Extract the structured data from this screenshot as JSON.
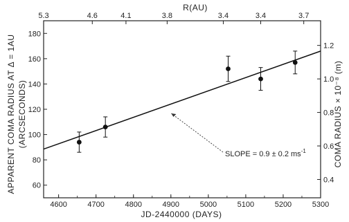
{
  "chart_data": {
    "type": "scatter",
    "x_axis": {
      "label": "JD-2440000 (DAYS)",
      "range": [
        4560,
        5300
      ],
      "ticks": [
        "4600",
        "4700",
        "4800",
        "4900",
        "5000",
        "5100",
        "5200",
        "5300"
      ]
    },
    "y_axis_left": {
      "label_line1": "APPARENT COMA RADIUS AT Δ = 1AU",
      "label_line2": "(ARCSECONDS)",
      "range": [
        50,
        190
      ],
      "ticks": [
        "60",
        "80",
        "100",
        "120",
        "140",
        "160",
        "180"
      ]
    },
    "y_axis_right": {
      "label": "COMA RADIUS × 10⁻⁸ (m)",
      "ticks": [
        "0.4",
        "0.6",
        "0.8",
        "1.0",
        "1.2"
      ],
      "tick_left_values": [
        64.5,
        91,
        117.5,
        144,
        170.5
      ]
    },
    "x_axis_top": {
      "label": "R(AU)",
      "ticks": [
        "5.3",
        "4.6",
        "4.1",
        "3.8",
        "3.4",
        "3.4",
        "3.7"
      ],
      "tick_x_values": [
        4560,
        4690,
        4780,
        4890,
        5040,
        5140,
        5255
      ]
    },
    "points": [
      {
        "x": 4655,
        "y": 94,
        "err": 8
      },
      {
        "x": 4725,
        "y": 106,
        "err": 8
      },
      {
        "x": 5053,
        "y": 152,
        "err": 10
      },
      {
        "x": 5140,
        "y": 144,
        "err": 9
      },
      {
        "x": 5232,
        "y": 157,
        "err": 9
      }
    ],
    "fit_line": {
      "x": [
        4560,
        5300
      ],
      "y": [
        88.5,
        166
      ]
    },
    "annotation": {
      "text": "SLOPE = 0.9 ± 0.2 ms",
      "superscript": "-1",
      "arrow_to": {
        "x": 4890,
        "y": 120
      }
    },
    "grid": false
  }
}
